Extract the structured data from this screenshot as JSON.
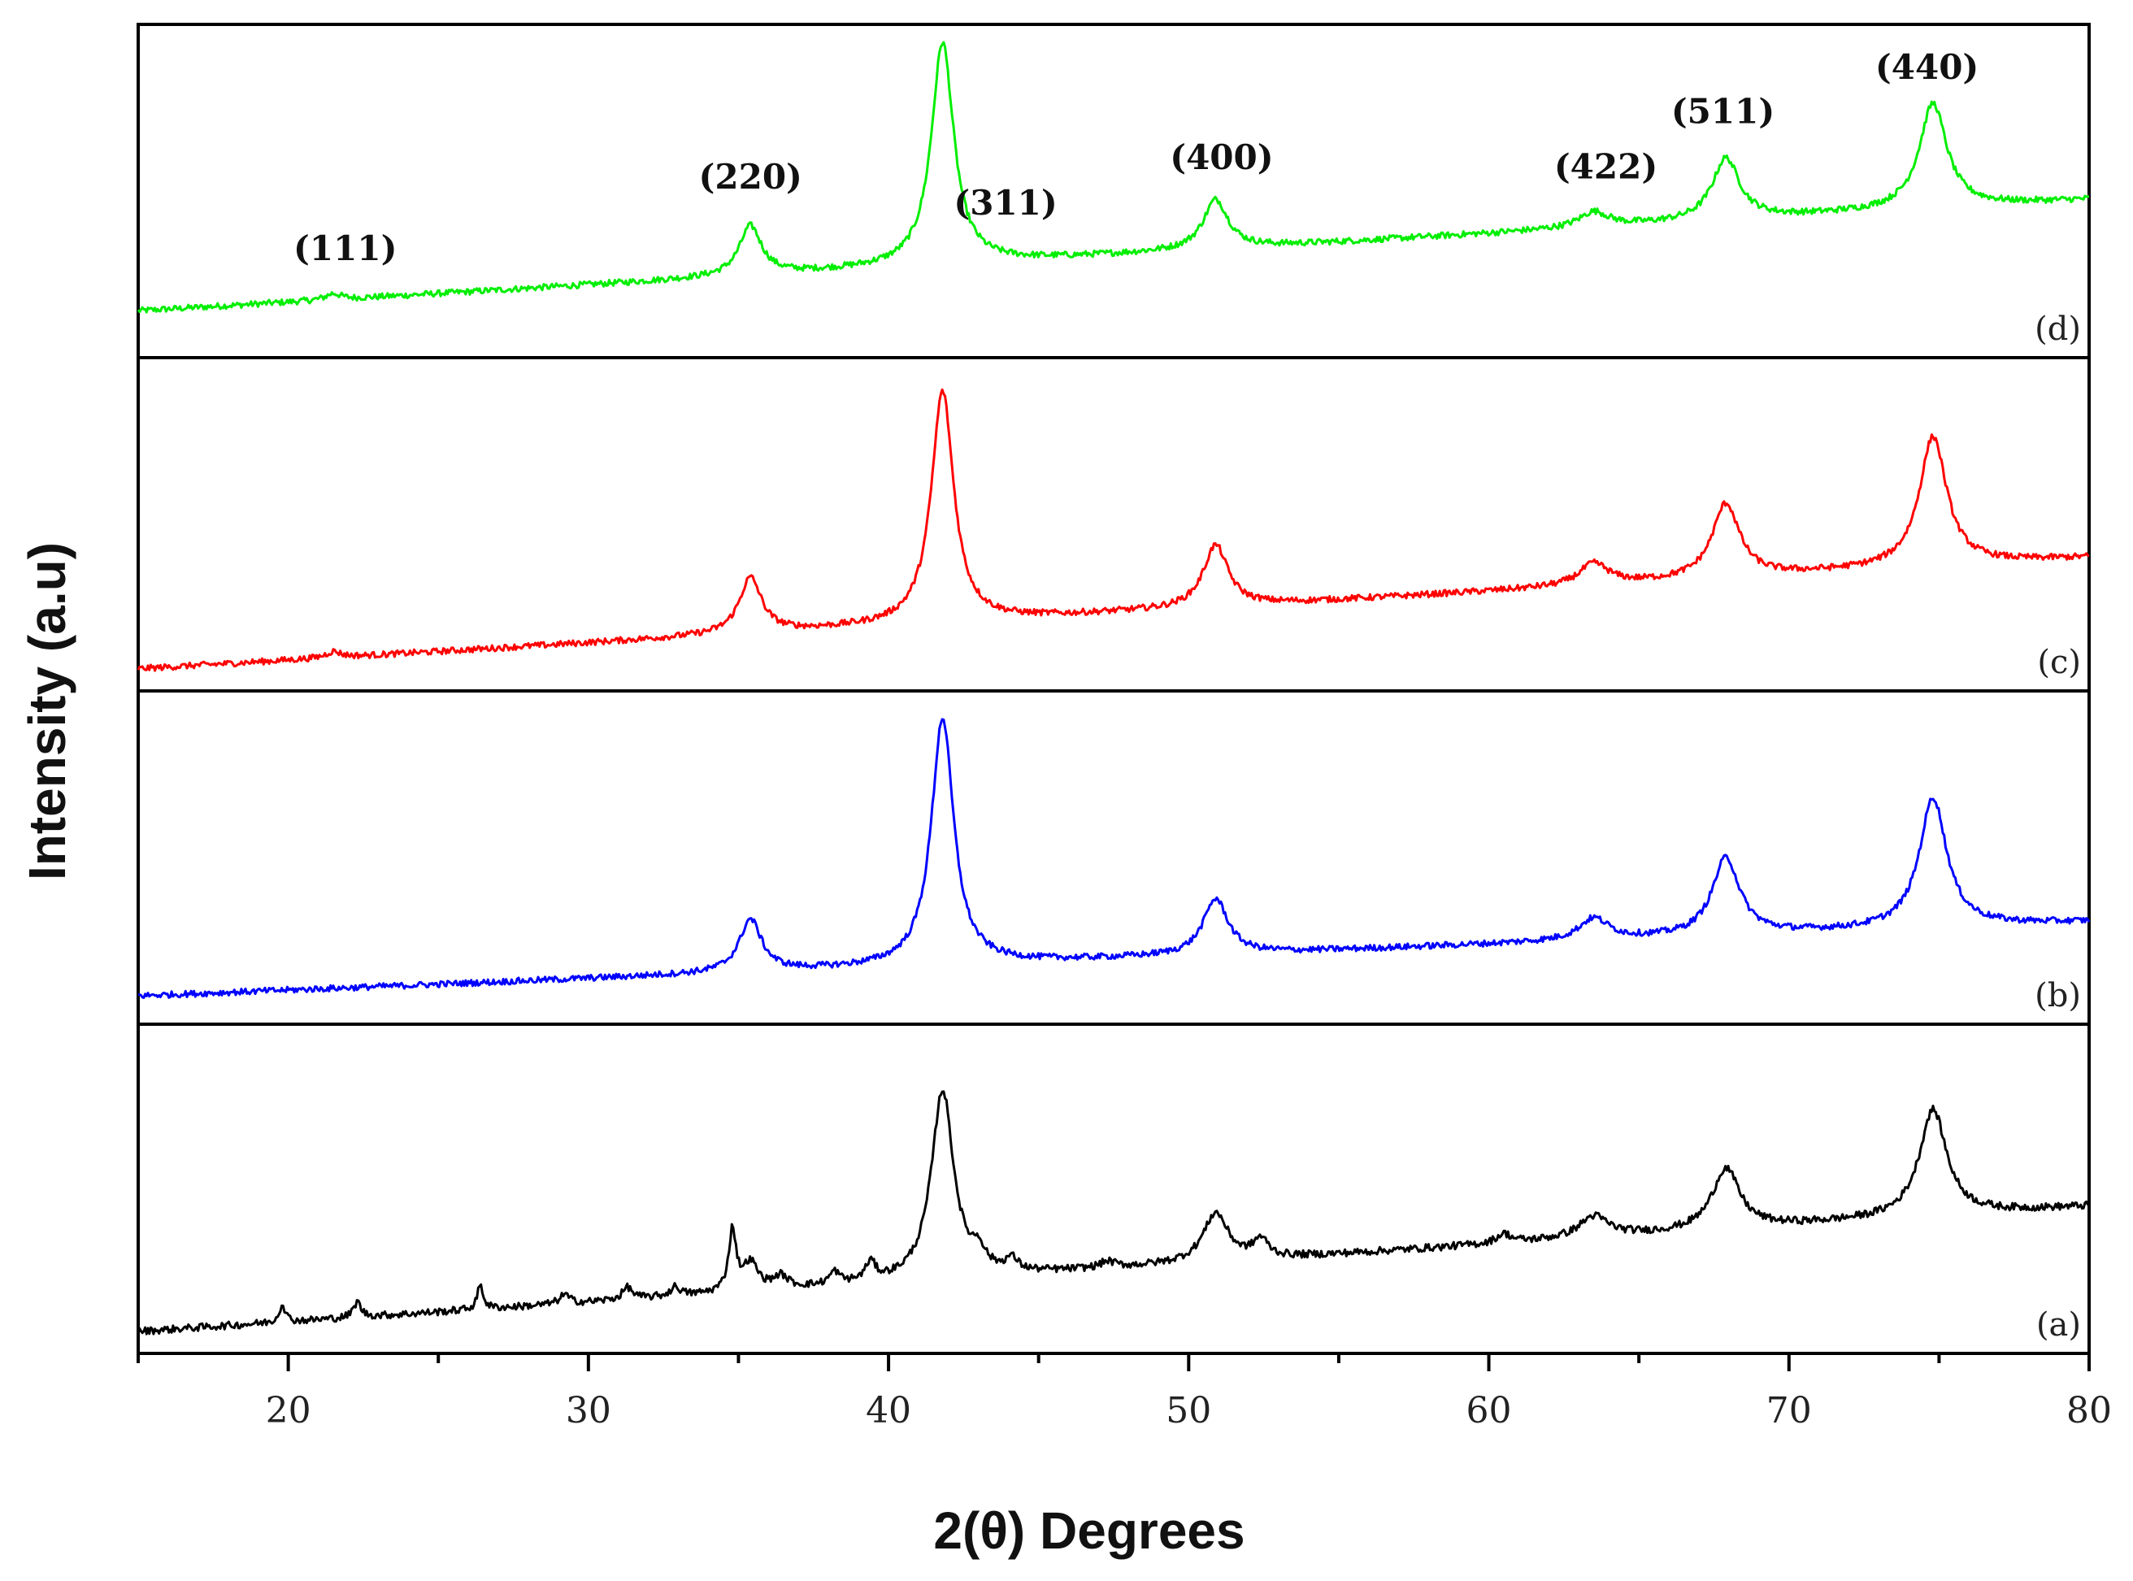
{
  "chart_data": {
    "type": "line",
    "title": "",
    "xlabel": "2(θ) Degrees",
    "ylabel": "Intensity (a.u)",
    "xlim": [
      15,
      80
    ],
    "x_ticks": [
      20,
      30,
      40,
      50,
      60,
      70,
      80
    ],
    "x_tick_labels": [
      "20",
      "30",
      "40",
      "50",
      "60",
      "70",
      "80"
    ],
    "grid": false,
    "layout": "stacked panels, (d) on top to (a) at bottom",
    "series": [
      {
        "name": "(a)",
        "color": "#000000",
        "baseline_start": 0.04,
        "baseline_end": 0.45,
        "noise": 0.012,
        "peaks": [
          {
            "x": 19.8,
            "height": 0.06,
            "width": 0.12
          },
          {
            "x": 22.3,
            "height": 0.05,
            "width": 0.15
          },
          {
            "x": 26.4,
            "height": 0.08,
            "width": 0.12
          },
          {
            "x": 29.2,
            "height": 0.03,
            "width": 0.2
          },
          {
            "x": 31.3,
            "height": 0.04,
            "width": 0.2
          },
          {
            "x": 32.9,
            "height": 0.03,
            "width": 0.2
          },
          {
            "x": 34.8,
            "height": 0.2,
            "width": 0.15
          },
          {
            "x": 35.4,
            "height": 0.09,
            "width": 0.3
          },
          {
            "x": 36.4,
            "height": 0.04,
            "width": 0.3
          },
          {
            "x": 38.2,
            "height": 0.04,
            "width": 0.2
          },
          {
            "x": 39.4,
            "height": 0.06,
            "width": 0.2
          },
          {
            "x": 41.8,
            "height": 0.62,
            "width": 0.45
          },
          {
            "x": 43.0,
            "height": 0.06,
            "width": 0.25
          },
          {
            "x": 44.1,
            "height": 0.04,
            "width": 0.25
          },
          {
            "x": 47.3,
            "height": 0.02,
            "width": 0.3
          },
          {
            "x": 50.9,
            "height": 0.16,
            "width": 0.5
          },
          {
            "x": 52.4,
            "height": 0.06,
            "width": 0.3
          },
          {
            "x": 60.5,
            "height": 0.03,
            "width": 0.3
          },
          {
            "x": 63.5,
            "height": 0.07,
            "width": 0.6
          },
          {
            "x": 67.9,
            "height": 0.2,
            "width": 0.55
          },
          {
            "x": 74.8,
            "height": 0.35,
            "width": 0.55
          }
        ]
      },
      {
        "name": "(b)",
        "color": "#0000ff",
        "baseline_start": 0.06,
        "baseline_end": 0.3,
        "noise": 0.01,
        "peaks": [
          {
            "x": 35.4,
            "height": 0.17,
            "width": 0.45
          },
          {
            "x": 41.8,
            "height": 0.8,
            "width": 0.45
          },
          {
            "x": 50.9,
            "height": 0.18,
            "width": 0.5
          },
          {
            "x": 63.5,
            "height": 0.07,
            "width": 0.6
          },
          {
            "x": 67.9,
            "height": 0.25,
            "width": 0.55
          },
          {
            "x": 74.8,
            "height": 0.42,
            "width": 0.55
          }
        ]
      },
      {
        "name": "(c)",
        "color": "#ff0000",
        "baseline_start": 0.04,
        "baseline_end": 0.4,
        "noise": 0.01,
        "peaks": [
          {
            "x": 21.5,
            "height": 0.02,
            "width": 0.3
          },
          {
            "x": 35.4,
            "height": 0.18,
            "width": 0.45
          },
          {
            "x": 41.8,
            "height": 0.75,
            "width": 0.45
          },
          {
            "x": 50.9,
            "height": 0.2,
            "width": 0.5
          },
          {
            "x": 63.5,
            "height": 0.07,
            "width": 0.6
          },
          {
            "x": 67.9,
            "height": 0.24,
            "width": 0.55
          },
          {
            "x": 74.8,
            "height": 0.42,
            "width": 0.55
          }
        ]
      },
      {
        "name": "(d)",
        "color": "#00ee00",
        "baseline_start": 0.12,
        "baseline_end": 0.48,
        "noise": 0.01,
        "peaks": [
          {
            "x": 21.5,
            "height": 0.02,
            "width": 0.3
          },
          {
            "x": 35.4,
            "height": 0.16,
            "width": 0.45
          },
          {
            "x": 41.8,
            "height": 0.72,
            "width": 0.45
          },
          {
            "x": 50.9,
            "height": 0.16,
            "width": 0.5
          },
          {
            "x": 63.5,
            "height": 0.05,
            "width": 0.6
          },
          {
            "x": 67.9,
            "height": 0.2,
            "width": 0.55
          },
          {
            "x": 74.8,
            "height": 0.34,
            "width": 0.55
          }
        ]
      }
    ],
    "annotations": [
      {
        "text": "(111)",
        "x": 21.9
      },
      {
        "text": "(220)",
        "x": 35.4
      },
      {
        "text": "(311)",
        "x": 43.9
      },
      {
        "text": "(400)",
        "x": 51.1
      },
      {
        "text": "(422)",
        "x": 63.9
      },
      {
        "text": "(511)",
        "x": 67.8
      },
      {
        "text": "(440)",
        "x": 74.6
      }
    ]
  }
}
